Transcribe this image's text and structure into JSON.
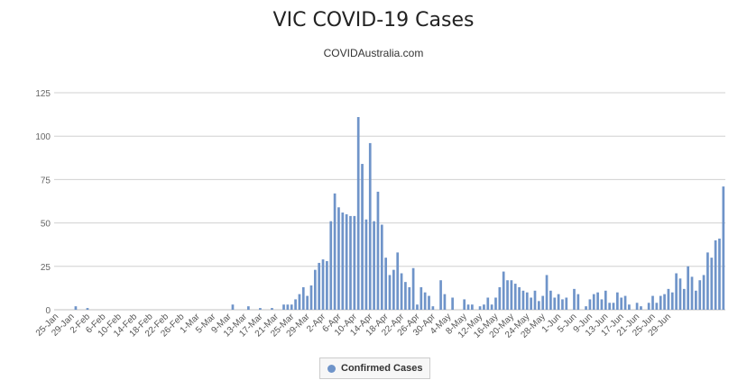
{
  "chart_data": {
    "type": "bar",
    "title": "VIC COVID-19 Cases",
    "subtitle": "COVIDAustralia.com",
    "xlabel": "",
    "ylabel": "",
    "ylim": [
      0,
      125
    ],
    "yticks": [
      0,
      25,
      50,
      75,
      100,
      125
    ],
    "grid": true,
    "legend_position": "bottom-center",
    "color": "#6f94c9",
    "x_start": "2020-01-25",
    "x_tick_every": 4,
    "x_tick_labels": [
      "25-Jan",
      "29-Jan",
      "2-Feb",
      "6-Feb",
      "10-Feb",
      "14-Feb",
      "18-Feb",
      "22-Feb",
      "26-Feb",
      "1-Mar",
      "5-Mar",
      "9-Mar",
      "13-Mar",
      "17-Mar",
      "21-Mar",
      "25-Mar",
      "29-Mar",
      "2-Apr",
      "6-Apr",
      "10-Apr",
      "14-Apr",
      "18-Apr",
      "22-Apr",
      "26-Apr",
      "30-Apr",
      "4-May",
      "8-May",
      "12-May",
      "16-May",
      "20-May",
      "24-May",
      "28-May",
      "1-Jun",
      "5-Jun",
      "9-Jun",
      "13-Jun",
      "17-Jun",
      "21-Jun",
      "25-Jun",
      "29-Jun"
    ],
    "series": [
      {
        "name": "Confirmed Cases",
        "values": [
          0,
          0,
          0,
          0,
          0,
          2,
          0,
          0,
          1,
          0,
          0,
          0,
          0,
          0,
          0,
          0,
          0,
          0,
          0,
          0,
          0,
          0,
          0,
          0,
          0,
          0,
          0,
          0,
          0,
          0,
          0,
          0,
          0,
          0,
          0,
          0,
          0,
          0,
          0,
          0,
          0,
          0,
          0,
          0,
          0,
          3,
          0,
          0,
          0,
          2,
          0,
          0,
          1,
          0,
          0,
          1,
          0,
          0,
          3,
          3,
          3,
          6,
          9,
          13,
          8,
          14,
          23,
          27,
          29,
          28,
          51,
          67,
          59,
          56,
          55,
          54,
          54,
          111,
          84,
          52,
          96,
          51,
          68,
          49,
          30,
          20,
          23,
          33,
          21,
          16,
          13,
          24,
          3,
          13,
          10,
          8,
          2,
          0,
          17,
          9,
          0,
          7,
          0,
          0,
          6,
          3,
          3,
          0,
          2,
          3,
          7,
          3,
          7,
          13,
          22,
          17,
          17,
          15,
          13,
          11,
          10,
          7,
          11,
          5,
          8,
          20,
          11,
          7,
          9,
          6,
          7,
          0,
          12,
          9,
          0,
          2,
          6,
          9,
          10,
          6,
          11,
          4,
          4,
          10,
          7,
          8,
          3,
          0,
          4,
          2,
          0,
          4,
          8,
          4,
          8,
          9,
          12,
          10,
          21,
          18,
          12,
          25,
          19,
          11,
          17,
          20,
          33,
          30,
          40,
          41,
          71
        ]
      }
    ]
  }
}
